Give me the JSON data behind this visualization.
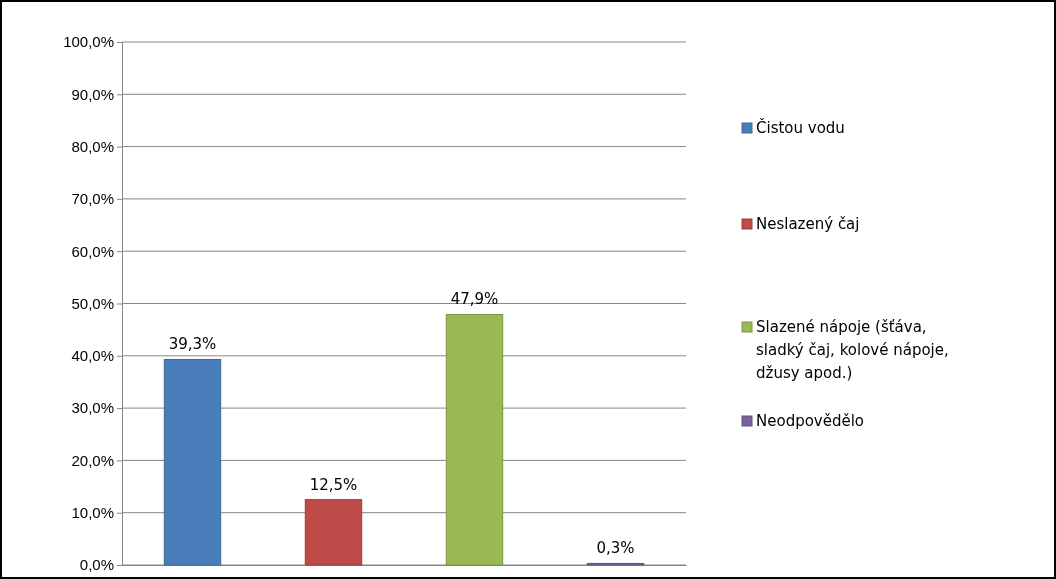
{
  "chart_data": {
    "type": "bar",
    "categories": [
      null,
      null,
      null,
      null
    ],
    "series": [
      {
        "name": "Čistou vodu",
        "color": "#4a7ebb",
        "values": [
          39.3,
          null,
          null,
          null
        ],
        "value_labels": [
          "39,3%",
          null,
          null,
          null
        ]
      },
      {
        "name": "Neslazený čaj",
        "color": "#be4b48",
        "values": [
          null,
          12.5,
          null,
          null
        ],
        "value_labels": [
          null,
          "12,5%",
          null,
          null
        ]
      },
      {
        "name": "Slazené nápoje (šťáva, sladký čaj, kolové nápoje, džusy apod.)",
        "color": "#98b954",
        "values": [
          null,
          null,
          47.9,
          null
        ],
        "value_labels": [
          null,
          null,
          "47,9%",
          null
        ]
      },
      {
        "name": "Neodpovědělo",
        "color": "#7d60a0",
        "values": [
          null,
          null,
          null,
          0.3
        ],
        "value_labels": [
          null,
          null,
          null,
          "0,3%"
        ]
      }
    ],
    "ylim": [
      0,
      100
    ],
    "yticks": [
      {
        "value": 0,
        "label": "0,0%"
      },
      {
        "value": 10,
        "label": "10,0%"
      },
      {
        "value": 20,
        "label": "20,0%"
      },
      {
        "value": 30,
        "label": "30,0%"
      },
      {
        "value": 40,
        "label": "40,0%"
      },
      {
        "value": 50,
        "label": "50,0%"
      },
      {
        "value": 60,
        "label": "60,0%"
      },
      {
        "value": 70,
        "label": "70,0%"
      },
      {
        "value": 80,
        "label": "80,0%"
      },
      {
        "value": 90,
        "label": "90,0%"
      },
      {
        "value": 100,
        "label": "100,0%"
      }
    ],
    "grid": "y",
    "legend": "right"
  }
}
